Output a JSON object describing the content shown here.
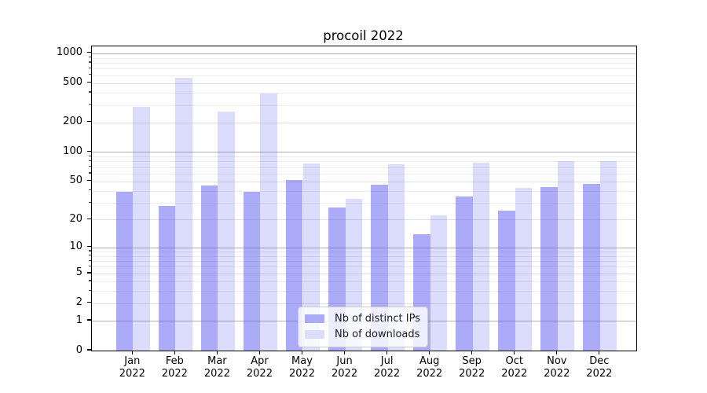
{
  "chart_data": {
    "type": "bar",
    "title": "procoil 2022",
    "categories": [
      "Jan",
      "Feb",
      "Mar",
      "Apr",
      "May",
      "Jun",
      "Jul",
      "Aug",
      "Sep",
      "Oct",
      "Nov",
      "Dec"
    ],
    "year_label": "2022",
    "series": [
      {
        "name": "Nb of distinct IPs",
        "color": "#acacf6",
        "values": [
          39,
          28,
          45,
          39,
          52,
          27,
          46,
          14,
          35,
          25,
          44,
          47
        ]
      },
      {
        "name": "Nb of downloads",
        "color": "#dcdcfb",
        "values": [
          285,
          570,
          258,
          390,
          77,
          33,
          75,
          22,
          78,
          43,
          81,
          81
        ]
      }
    ],
    "y_scale": "log10(value+1)",
    "y_ticks": [
      0,
      1,
      2,
      5,
      10,
      20,
      50,
      100,
      200,
      500,
      1000
    ],
    "y_major_gridlines": [
      1,
      10,
      100,
      1000
    ],
    "ylim": [
      0,
      1165
    ],
    "grid": true,
    "legend_position": "lower center",
    "colors": {
      "bar_distinct_ips": "rgba(80,80,240,0.48)",
      "bar_downloads": "rgba(80,80,240,0.20)",
      "grid_major": "#b0b0b0",
      "grid_minor": "#ececec",
      "spine": "#000000"
    }
  }
}
